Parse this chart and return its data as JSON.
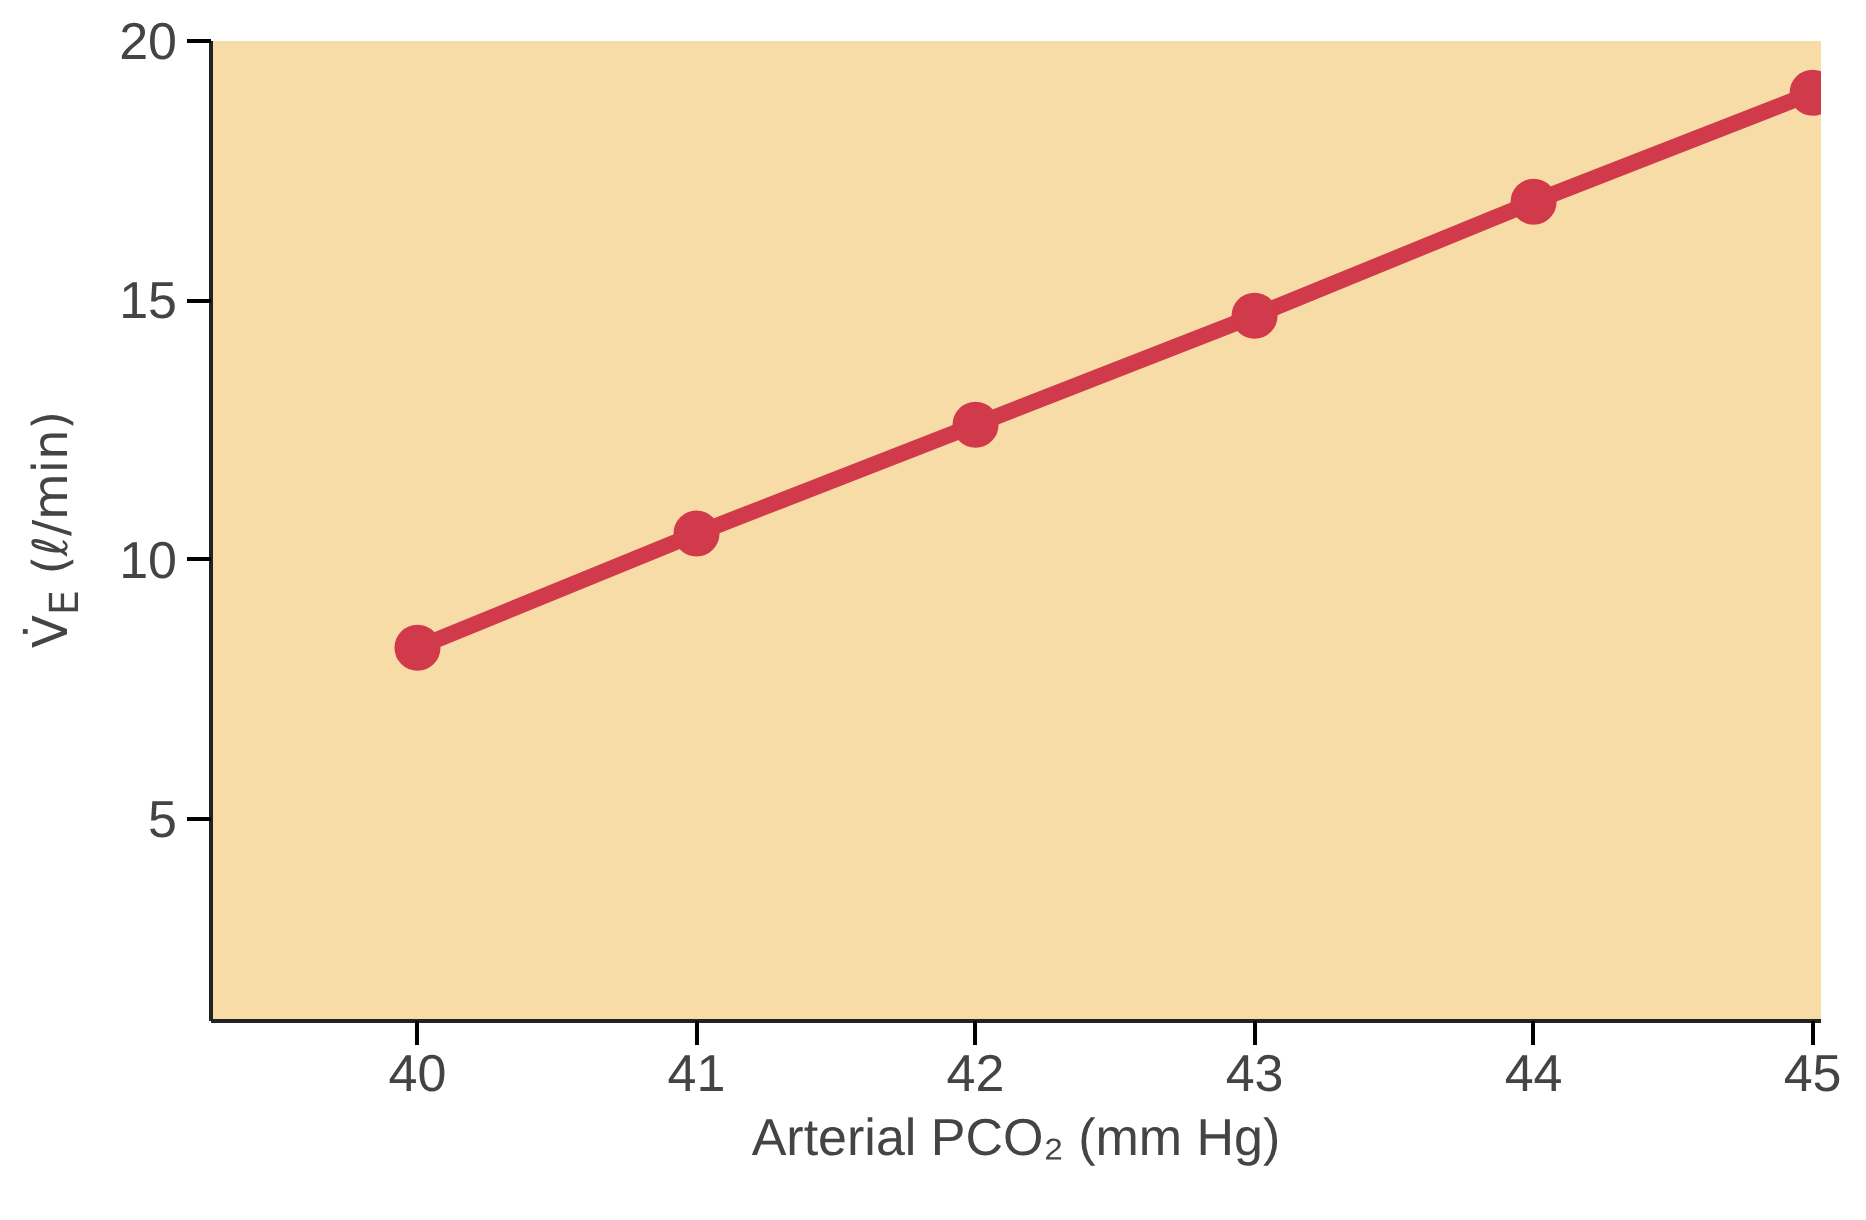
{
  "chart_data": {
    "type": "line",
    "xlabel": "Arterial PCO₂ (mm Hg)",
    "ylabel": "V̇$_{E}$ (ℓ/min)",
    "x": [
      40,
      41,
      42,
      43,
      44,
      45
    ],
    "series": [
      {
        "color": "#d03a4b",
        "values": [
          8.3,
          10.5,
          12.6,
          14.7,
          16.9,
          19.0
        ]
      }
    ],
    "xlim": [
      39.26,
      45.03
    ],
    "ylim": [
      1.1,
      20
    ],
    "xticks": [
      40,
      41,
      42,
      43,
      44,
      45
    ],
    "yticks": [
      5,
      10,
      15,
      20
    ],
    "grid": false,
    "marker": "circle",
    "line_style": "solid"
  }
}
